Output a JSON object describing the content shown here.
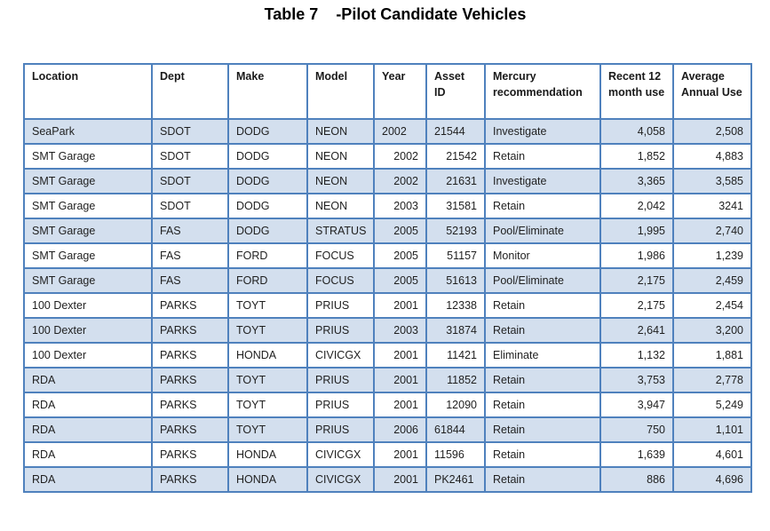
{
  "document": {
    "title": "Table 7    -Pilot Candidate Vehicles"
  },
  "table": {
    "headers": [
      "Location",
      "Dept",
      "Make",
      "Model",
      "Year",
      "Asset ID",
      "Mercury recommendation",
      "Recent 12 month use",
      "Average Annual Use"
    ],
    "rows": [
      [
        "SeaPark",
        "SDOT",
        "DODG",
        "NEON",
        "2002",
        "21544",
        "Investigate",
        "4,058",
        "2,508"
      ],
      [
        "SMT Garage",
        "SDOT",
        "DODG",
        "NEON",
        "2002",
        "21542",
        "Retain",
        "1,852",
        "4,883"
      ],
      [
        "SMT Garage",
        "SDOT",
        "DODG",
        "NEON",
        "2002",
        "21631",
        "Investigate",
        "3,365",
        "3,585"
      ],
      [
        "SMT Garage",
        "SDOT",
        "DODG",
        "NEON",
        "2003",
        "31581",
        "Retain",
        "2,042",
        "3241"
      ],
      [
        "SMT Garage",
        "FAS",
        "DODG",
        "STRATUS",
        "2005",
        "52193",
        "Pool/Eliminate",
        "1,995",
        "2,740"
      ],
      [
        "SMT Garage",
        "FAS",
        "FORD",
        "FOCUS",
        "2005",
        "51157",
        "Monitor",
        "1,986",
        "1,239"
      ],
      [
        "SMT Garage",
        "FAS",
        "FORD",
        "FOCUS",
        "2005",
        "51613",
        "Pool/Eliminate",
        "2,175",
        "2,459"
      ],
      [
        "100 Dexter",
        "PARKS",
        "TOYT",
        "PRIUS",
        "2001",
        "12338",
        "Retain",
        "2,175",
        "2,454"
      ],
      [
        "100 Dexter",
        "PARKS",
        "TOYT",
        "PRIUS",
        "2003",
        "31874",
        "Retain",
        "2,641",
        "3,200"
      ],
      [
        "100 Dexter",
        "PARKS",
        "HONDA",
        "CIVICGX",
        "2001",
        "11421",
        "Eliminate",
        "1,132",
        "1,881"
      ],
      [
        "RDA",
        "PARKS",
        "TOYT",
        "PRIUS",
        "2001",
        "11852",
        "Retain",
        "3,753",
        "2,778"
      ],
      [
        "RDA",
        "PARKS",
        "TOYT",
        "PRIUS",
        "2001",
        "12090",
        "Retain",
        "3,947",
        "5,249"
      ],
      [
        "RDA",
        "PARKS",
        "TOYT",
        "PRIUS",
        "2006",
        "61844",
        "Retain",
        "750",
        "1,101"
      ],
      [
        "RDA",
        "PARKS",
        "HONDA",
        "CIVICGX",
        "2001",
        "11596",
        "Retain",
        "1,639",
        "4,601"
      ],
      [
        "RDA",
        "PARKS",
        "HONDA",
        "CIVICGX",
        "2001",
        "PK2461",
        "Retain",
        "886",
        "4,696"
      ]
    ]
  },
  "colors": {
    "border": "#4f81bd",
    "band": "#d3dfee"
  }
}
